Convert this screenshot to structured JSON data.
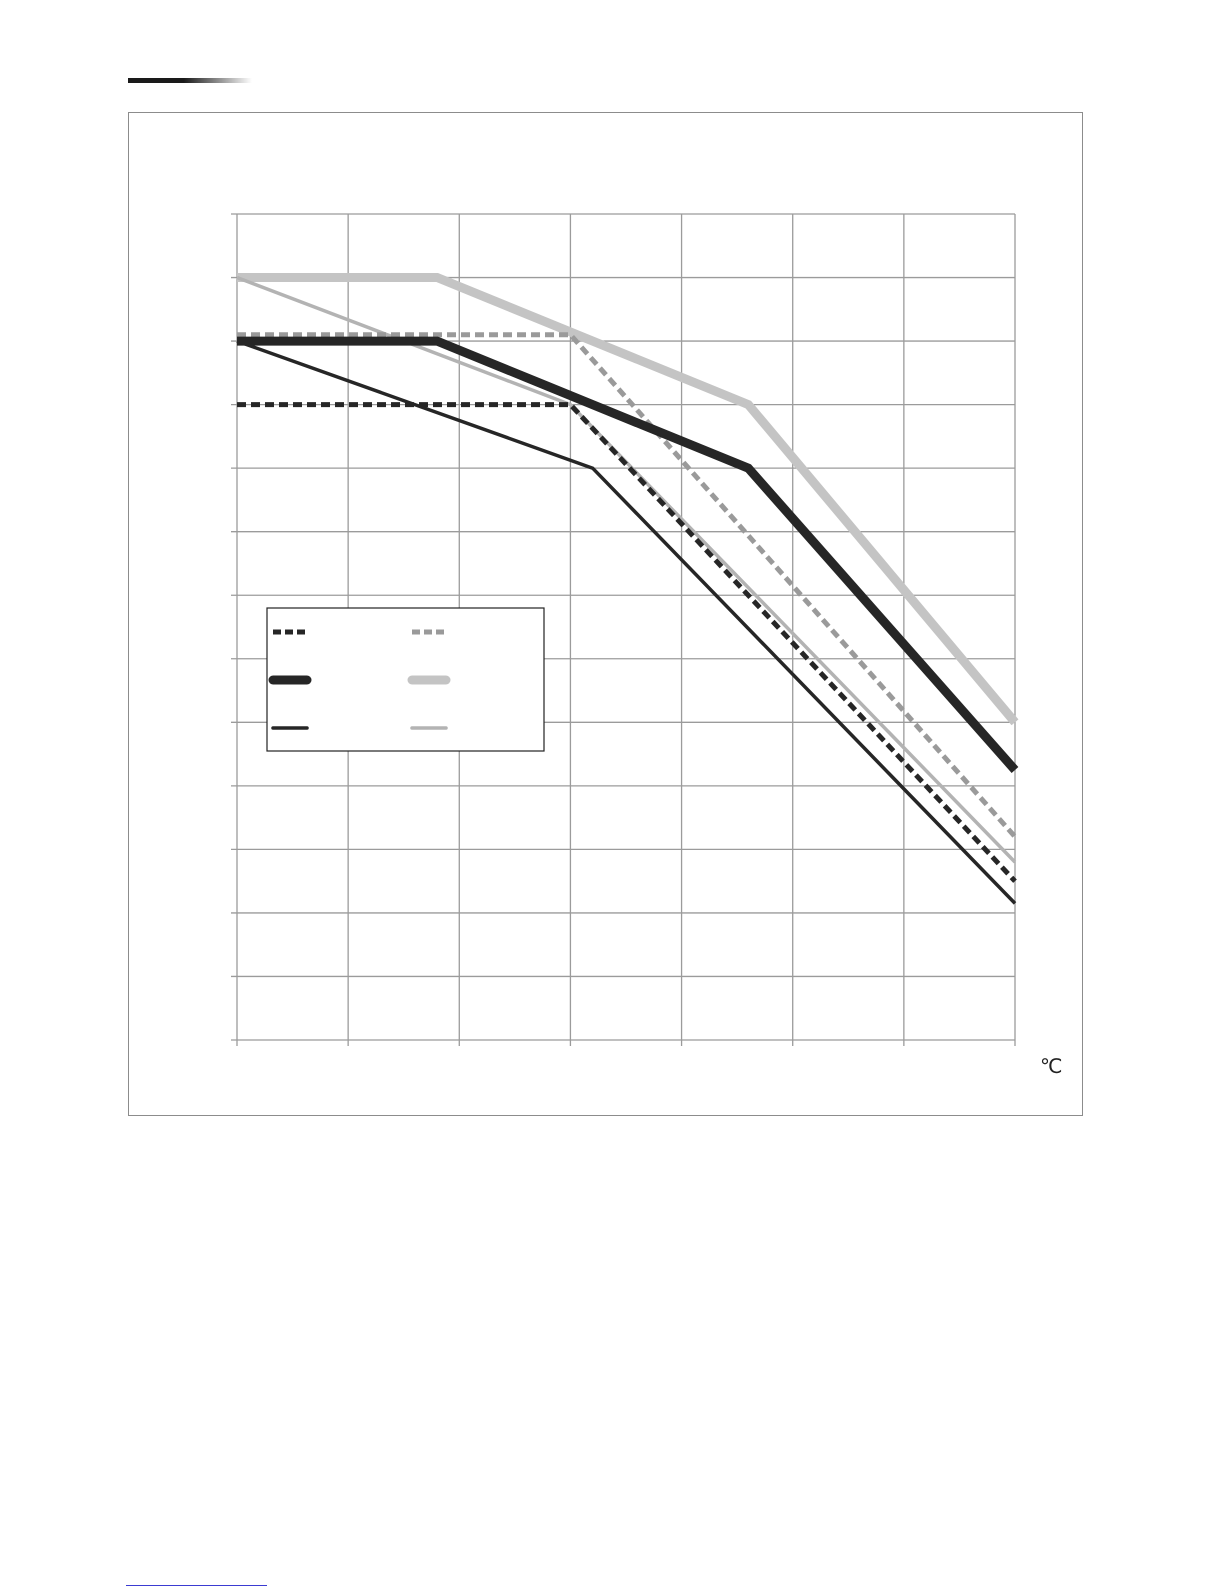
{
  "page": {
    "unit_label": "℃"
  },
  "chart_data": {
    "type": "line",
    "title": "",
    "xlabel": "",
    "ylabel": "",
    "x_unit": "℃",
    "xlim": [
      0,
      7
    ],
    "ylim": [
      0,
      13
    ],
    "x_gridlines": [
      0,
      1,
      2,
      3,
      4,
      5,
      6,
      7
    ],
    "y_gridlines": [
      0,
      1,
      2,
      3,
      4,
      5,
      6,
      7,
      8,
      9,
      10,
      11,
      12,
      13
    ],
    "grid": true,
    "legend_placement": "center-left",
    "series": [
      {
        "color": "#262626",
        "style": "dashed",
        "weight": "medium",
        "x": [
          0,
          3.0,
          7
        ],
        "y": [
          10.0,
          10.0,
          2.5
        ]
      },
      {
        "color": "#262626",
        "style": "solid",
        "weight": "heavy",
        "x": [
          0,
          1.8,
          4.6,
          7
        ],
        "y": [
          11.0,
          11.0,
          9.0,
          4.25
        ]
      },
      {
        "color": "#262626",
        "style": "solid",
        "weight": "thin",
        "x": [
          0,
          3.2,
          7
        ],
        "y": [
          11.0,
          9.0,
          2.15
        ]
      },
      {
        "color": "#9a9a9a",
        "style": "dashed",
        "weight": "medium",
        "x": [
          0,
          3.0,
          7
        ],
        "y": [
          11.1,
          11.1,
          3.2
        ]
      },
      {
        "color": "#c4c4c4",
        "style": "solid",
        "weight": "heavy",
        "x": [
          0,
          1.8,
          4.6,
          7
        ],
        "y": [
          12.0,
          12.0,
          10.0,
          5.0
        ]
      },
      {
        "color": "#b3b3b3",
        "style": "solid",
        "weight": "thin",
        "x": [
          0,
          3.0,
          7
        ],
        "y": [
          12.0,
          10.0,
          2.8
        ]
      }
    ]
  }
}
